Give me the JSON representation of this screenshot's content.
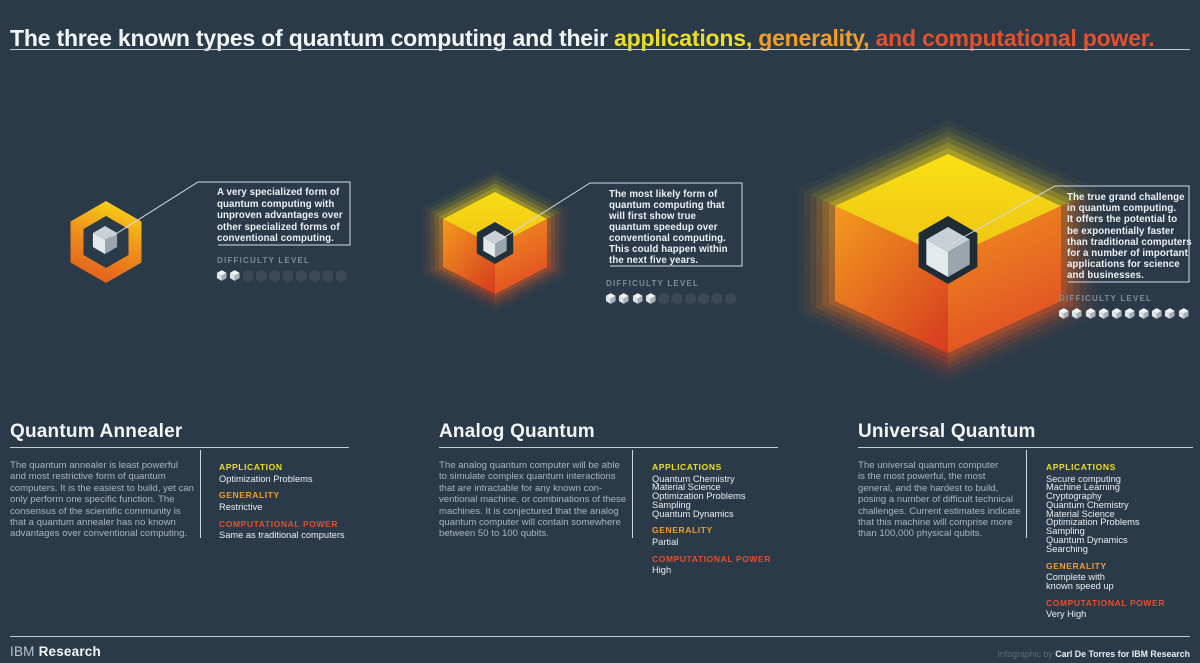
{
  "title": {
    "prefix": "The three known types of quantum computing and their ",
    "applications": "applications, ",
    "generality": "generality, ",
    "power": "and computational power."
  },
  "colors": {
    "background": "#2b3a49",
    "accent_yellow": "#eadf26",
    "accent_orange": "#f29d26",
    "accent_red": "#e2512d",
    "cube_face_top": "#f2f5f6",
    "cube_face_left": "#dde3e6",
    "cube_face_right": "#a7b1b8",
    "difficulty_dim": "#3b4956"
  },
  "columns": [
    {
      "name": "Quantum Annealer",
      "icon": "annealer-hex-ring-cube",
      "callout": "A very specialized form of\nquantum computing with\nunproven advantages over\nother specialized forms of\nconventional computing.",
      "difficulty_label": "DIFFICULTY LEVEL",
      "difficulty_level": 2,
      "difficulty_total": 10,
      "description": "The quantum annealer is least powerful\nand most restrictive form of quantum\ncomputers. It is the easiest to build, yet can\nonly perform one specific function. The\nconsensus of the scientific community is\nthat a quantum annealer has no known\nadvantages over conventional computing.",
      "stats": [
        {
          "label": "APPLICATION",
          "color": "#eadf26",
          "value": "Optimization Problems"
        },
        {
          "label": "GENERALITY",
          "color": "#f29d26",
          "value": "Restrictive"
        },
        {
          "label": "COMPUTATIONAL POWER",
          "color": "#e2512d",
          "value": "Same as traditional computers"
        }
      ]
    },
    {
      "name": "Analog Quantum",
      "icon": "analog-glowing-cube",
      "callout": "The most likely form of\nquantum computing that\nwill first show true\nquantum speedup over\nconventional computing.\nThis could happen within\nthe next five years.",
      "difficulty_label": "DIFFICULTY LEVEL",
      "difficulty_level": 4,
      "difficulty_total": 10,
      "description": "The analog quantum computer will be able\nto simulate complex quantum interactions\nthat are intractable for any known con-\nventional machine, or combinations of these\nmachines. It is conjectured that the analog\nquantum computer will contain somewhere\nbetween 50 to 100 qubits.",
      "stats": [
        {
          "label": "APPLICATIONS",
          "color": "#eadf26",
          "value": "Quantum Chemistry\nMaterial Science\nOptimization Problems\nSampling\nQuantum Dynamics"
        },
        {
          "label": "GENERALITY",
          "color": "#f29d26",
          "value": "Partial"
        },
        {
          "label": "COMPUTATIONAL POWER",
          "color": "#e2512d",
          "value": "High"
        }
      ]
    },
    {
      "name": "Universal Quantum",
      "icon": "universal-glowing-cube",
      "callout": "The true grand challenge\nin quantum computing.\nIt offers the potential to\nbe exponentially faster\nthan traditional computers\nfor a number of important\napplications for science\nand businesses.",
      "difficulty_label": "DIFFICULTY LEVEL",
      "difficulty_level": 10,
      "difficulty_total": 10,
      "description": "The universal quantum computer\nis the most powerful, the most\ngeneral, and the hardest to build,\nposing a number of difficult technical\nchallenges. Current estimates indicate\nthat this machine will comprise more\nthan 100,000 physical qubits.",
      "stats": [
        {
          "label": "APPLICATIONS",
          "color": "#eadf26",
          "value": "Secure computing\nMachine Learning\nCryptography\nQuantum Chemistry\nMaterial Science\nOptimization Problems\nSampling\nQuantum Dynamics\nSearching"
        },
        {
          "label": "GENERALITY",
          "color": "#f29d26",
          "value": "Complete with\nknown speed up"
        },
        {
          "label": "COMPUTATIONAL POWER",
          "color": "#e2512d",
          "value": "Very High"
        }
      ]
    }
  ],
  "footer": {
    "brand_prefix": "IBM",
    "brand_bold": "Research",
    "credit_prefix": "Infographic by ",
    "credit_name": "Carl De Torres for IBM Research"
  }
}
